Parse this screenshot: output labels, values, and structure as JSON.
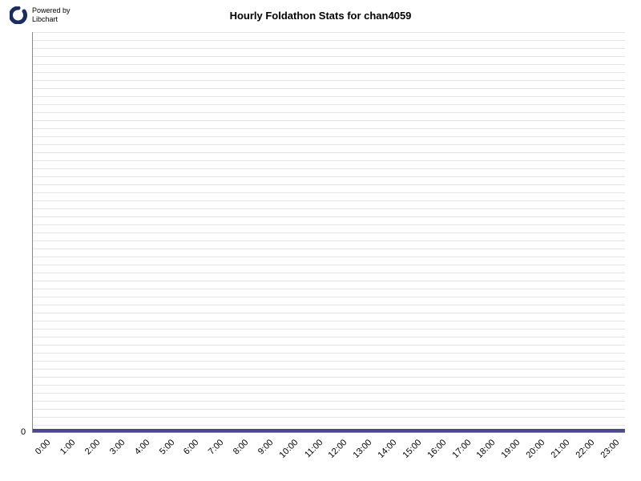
{
  "logo": {
    "powered_by": "Powered by",
    "name": "Libchart",
    "icon_color": "#1a2d5c"
  },
  "chart": {
    "type": "bar",
    "title": "Hourly Foldathon Stats for chan4059",
    "categories": [
      "0:00",
      "1:00",
      "2:00",
      "3:00",
      "4:00",
      "5:00",
      "6:00",
      "7:00",
      "8:00",
      "9:00",
      "10:00",
      "11:00",
      "12:00",
      "13:00",
      "14:00",
      "15:00",
      "16:00",
      "17:00",
      "18:00",
      "19:00",
      "20:00",
      "21:00",
      "22:00",
      "23:00"
    ],
    "values": [
      0,
      0,
      0,
      0,
      0,
      0,
      0,
      0,
      0,
      0,
      0,
      0,
      0,
      0,
      0,
      0,
      0,
      0,
      0,
      0,
      0,
      0,
      0,
      0
    ],
    "ylim": [
      0,
      0
    ],
    "y_tick_labels": [
      "0"
    ],
    "grid_color": "#e5e5e5",
    "grid_line_count": 50,
    "axis_color": "#888888",
    "background_color": "#ffffff",
    "baseline_color": "#4a4a8a",
    "title_fontsize": 13,
    "label_fontsize": 11,
    "text_color": "#000000"
  }
}
